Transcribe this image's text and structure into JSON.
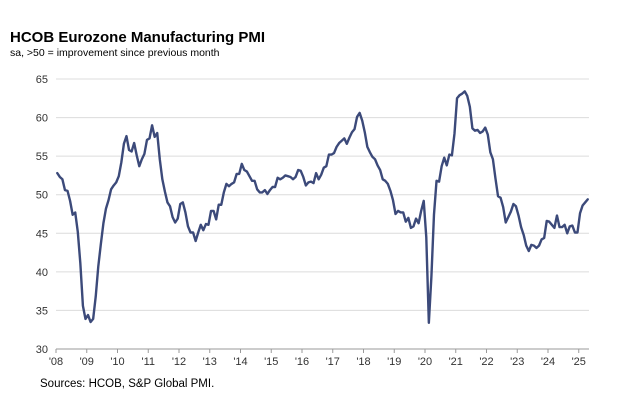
{
  "chart_data": {
    "type": "line",
    "title": "HCOB Eurozone Manufacturing  PMI",
    "subtitle": "sa, >50 = improvement  since previous  month",
    "source": "Sources: HCOB, S&P Global PMI.",
    "ylim": [
      30,
      65
    ],
    "yticks": [
      "65",
      "60",
      "55",
      "50",
      "45",
      "40",
      "35",
      "30"
    ],
    "xticks": [
      "'08",
      "'09",
      "'10",
      "'11",
      "'12",
      "'13",
      "'14",
      "'15",
      "'16",
      "'17",
      "'18",
      "'19",
      "'20",
      "'21",
      "'22",
      "'23",
      "'24",
      "'25"
    ],
    "grid": true,
    "line_color": "#3c4a7a",
    "series": [
      {
        "values": [
          52.8,
          52.3,
          52.0,
          50.6,
          50.5,
          49.2,
          47.4,
          47.7,
          45.2,
          41.1,
          35.6,
          33.9,
          34.4,
          33.5,
          33.9,
          36.8,
          40.7,
          43.6,
          46.3,
          48.2,
          49.3,
          50.7,
          51.2,
          51.6,
          52.4,
          54.2,
          56.6,
          57.6,
          55.8,
          55.6,
          56.7,
          55.1,
          53.7,
          54.6,
          55.3,
          57.1,
          57.3,
          59.0,
          57.5,
          58.0,
          54.6,
          52.0,
          50.4,
          49.0,
          48.5,
          47.1,
          46.4,
          46.9,
          48.8,
          49.0,
          47.7,
          45.9,
          45.1,
          45.1,
          44.0,
          45.1,
          46.1,
          45.4,
          46.2,
          46.1,
          47.9,
          47.9,
          46.8,
          48.7,
          48.7,
          50.3,
          51.4,
          51.1,
          51.4,
          51.6,
          52.7,
          52.7,
          54.0,
          53.2,
          53.0,
          52.4,
          51.8,
          51.8,
          50.7,
          50.3,
          50.3,
          50.6,
          50.1,
          50.6,
          51.0,
          51.0,
          52.2,
          52.0,
          52.2,
          52.5,
          52.4,
          52.3,
          52.0,
          52.3,
          53.2,
          53.1,
          52.3,
          51.2,
          51.6,
          51.7,
          51.5,
          52.8,
          52.0,
          52.6,
          53.5,
          53.7,
          55.2,
          55.2,
          55.4,
          56.2,
          56.7,
          57.0,
          57.3,
          56.6,
          57.4,
          58.1,
          58.5,
          60.1,
          60.6,
          59.6,
          58.1,
          56.2,
          55.5,
          54.9,
          54.6,
          53.8,
          53.2,
          52.0,
          51.8,
          51.4,
          50.5,
          49.3,
          47.5,
          47.9,
          47.7,
          47.7,
          46.5,
          47.0,
          45.7,
          45.9,
          46.9,
          46.3,
          47.9,
          49.2,
          44.5,
          33.4,
          39.4,
          47.4,
          51.8,
          51.7,
          53.7,
          54.8,
          53.8,
          55.2,
          55.1,
          57.9,
          62.5,
          62.9,
          63.1,
          63.4,
          62.8,
          61.4,
          58.6,
          58.3,
          58.4,
          58.0,
          58.2,
          58.7,
          57.8,
          55.5,
          54.6,
          52.1,
          49.8,
          49.6,
          48.4,
          46.4,
          47.1,
          47.8,
          48.8,
          48.5,
          47.3,
          45.8,
          44.8,
          43.4,
          42.7,
          43.5,
          43.4,
          43.1,
          43.4,
          44.2,
          44.4,
          46.6,
          46.5,
          46.1,
          45.7,
          47.3,
          45.8,
          45.8,
          46.1,
          45.0,
          45.9,
          46.0,
          45.1,
          45.1,
          47.6,
          48.6,
          49.0,
          49.4
        ]
      }
    ]
  }
}
